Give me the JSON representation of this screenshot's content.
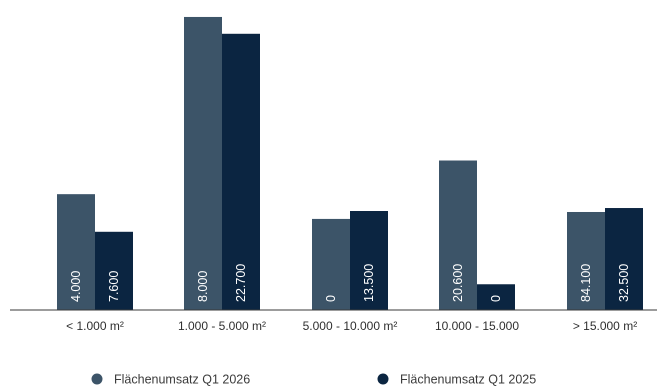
{
  "chart_data": {
    "type": "bar",
    "categories": [
      "< 1.000 m²",
      "1.000 - 5.000 m²",
      "5.000 - 10.000 m²",
      "10.000 - 15.000",
      "> 15.000 m²"
    ],
    "series": [
      {
        "name": "Flächenumsatz Q1 2026",
        "color": "#3c5468",
        "values": [
          117,
          296,
          92,
          151,
          99
        ],
        "labels": [
          "4.000",
          "8.000",
          "0",
          "20.600",
          "84.100"
        ]
      },
      {
        "name": "Flächenumsatz Q1 2025",
        "color": "#0b2541",
        "values": [
          79,
          279,
          100,
          26,
          103
        ],
        "labels": [
          "7.600",
          "22.700",
          "13.500",
          "0",
          "32.500"
        ]
      }
    ],
    "title": "",
    "xlabel": "",
    "ylabel": "",
    "ylim": [
      0,
      300
    ],
    "grid": false,
    "legend_position": "bottom"
  }
}
